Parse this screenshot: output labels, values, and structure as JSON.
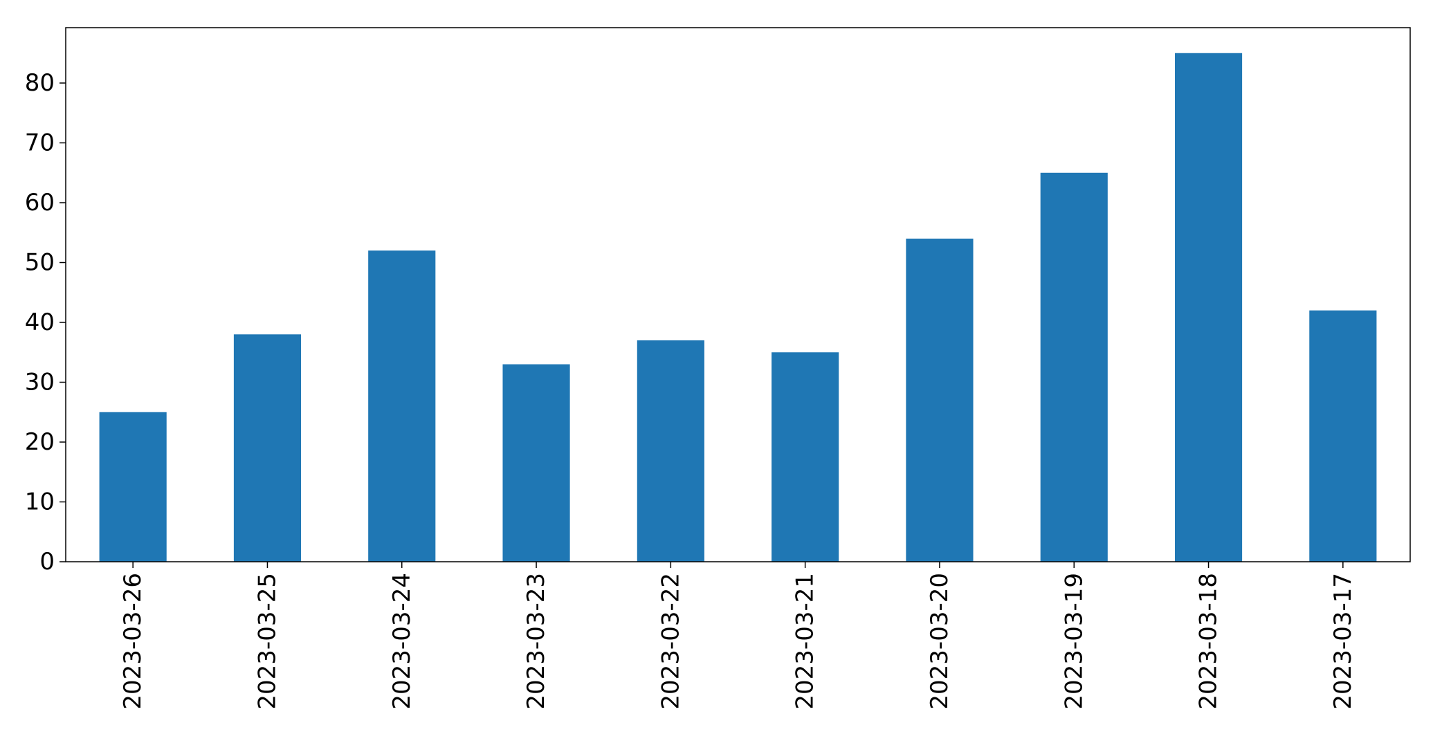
{
  "chart_data": {
    "type": "bar",
    "title": "",
    "xlabel": "",
    "ylabel": "",
    "categories": [
      "2023-03-26",
      "2023-03-25",
      "2023-03-24",
      "2023-03-23",
      "2023-03-22",
      "2023-03-21",
      "2023-03-20",
      "2023-03-19",
      "2023-03-18",
      "2023-03-17"
    ],
    "values": [
      25,
      38,
      52,
      33,
      37,
      35,
      54,
      65,
      85,
      42
    ],
    "ylim": [
      0,
      89.25
    ],
    "yticks": [
      0,
      10,
      20,
      30,
      40,
      50,
      60,
      70,
      80
    ],
    "grid": false,
    "legend": "none",
    "colors": {
      "bar": "#1f77b4",
      "axis": "#000000",
      "background": "#ffffff"
    }
  }
}
